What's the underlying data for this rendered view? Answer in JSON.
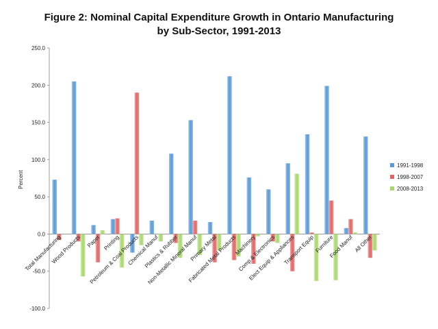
{
  "chart_data": {
    "type": "bar",
    "title_line1": "Figure 2: Nominal Capital Expenditure Growth in Ontario Manufacturing",
    "title_line2": "by Sub-Sector, 1991-2013",
    "xlabel": "",
    "ylabel": "Percent",
    "ylim": [
      -100,
      250
    ],
    "y_ticks": [
      "250.0",
      "200.0",
      "150.0",
      "100.0",
      "50.0",
      "0.0",
      "-50.0",
      "-100.0"
    ],
    "grid": false,
    "legend_position": "right",
    "categories": [
      "Total Manufacturing",
      "Wood Products",
      "Paper",
      "Printing",
      "Petroleum & Coal Products",
      "Chemical Manuf",
      "Plastics & Rubber",
      "Non-Metallic Mineral Manuf",
      "Primary Metal",
      "Fabricated Metal Products",
      "Machinery",
      "Comp & Electronics",
      "Elect Equip & Appliances",
      "Transport Equip",
      "Furniture",
      "Food Manuf",
      "All Other"
    ],
    "series": [
      {
        "name": "1991-1998",
        "color": "#5b9bd5",
        "values": [
          73,
          205,
          12,
          20,
          -25,
          18,
          108,
          153,
          16,
          212,
          76,
          60,
          95,
          134,
          199,
          8,
          131
        ]
      },
      {
        "name": "1998-2007",
        "color": "#e06666",
        "values": [
          -8,
          -10,
          -38,
          21,
          190,
          0,
          -12,
          18,
          -38,
          -35,
          -40,
          -10,
          -50,
          2,
          45,
          20,
          -32
        ]
      },
      {
        "name": "2008-2013",
        "color": "#a9d86e",
        "values": [
          0,
          -57,
          5,
          -45,
          -15,
          -10,
          -32,
          -28,
          -22,
          -30,
          -3,
          -12,
          81,
          -63,
          -62,
          2,
          -22
        ]
      }
    ]
  }
}
